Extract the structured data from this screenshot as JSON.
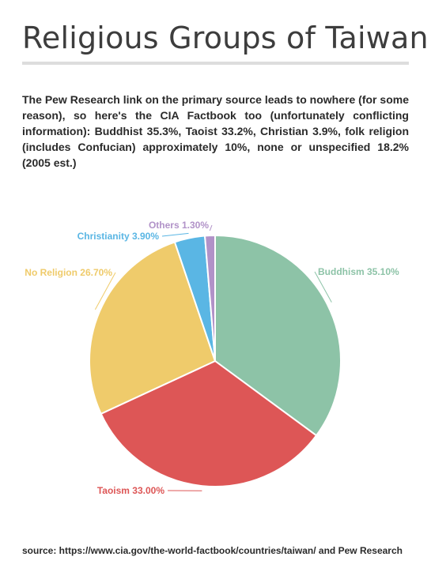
{
  "header": {
    "title": "Religious Groups of Taiwan"
  },
  "description": "The Pew Research link on the primary source leads to nowhere (for some reason), so here's the CIA Factbook too (unfortunately conflicting information): Buddhist 35.3%, Taoist 33.2%, Christian 3.9%, folk religion (includes Confucian) approximately 10%, none or unspecified 18.2% (2005 est.)",
  "footer": {
    "source": "source: https://www.cia.gov/the-world-factbook/countries/taiwan/ and Pew Research"
  },
  "chart_data": {
    "type": "pie",
    "title": "Religious Groups of Taiwan",
    "slices": [
      {
        "label": "Buddhism 35.10%",
        "value": 35.1,
        "color": "#8dc3a7"
      },
      {
        "label": "Taoism 33.00%",
        "value": 33.0,
        "color": "#dd5656"
      },
      {
        "label": "No Religion 26.70%",
        "value": 26.7,
        "color": "#efcb6b"
      },
      {
        "label": "Christianity 3.90%",
        "value": 3.9,
        "color": "#5ab6e4"
      },
      {
        "label": "Others 1.30%",
        "value": 1.3,
        "color": "#b192c8"
      }
    ]
  }
}
